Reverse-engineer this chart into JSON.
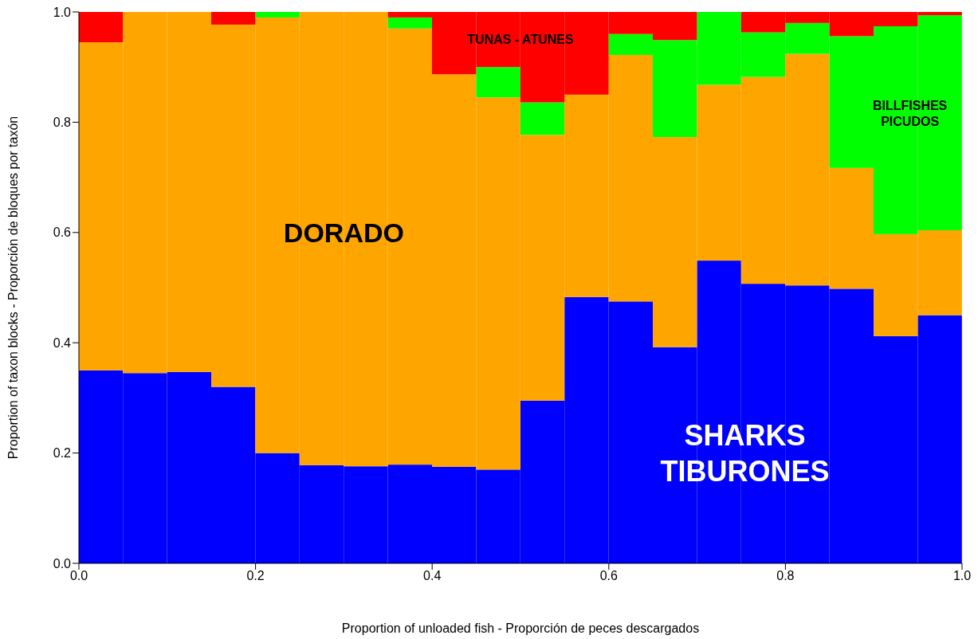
{
  "chart_data": {
    "type": "bar",
    "stacked": true,
    "xlabel": "Proportion of unloaded fish - Proporción de peces descargados",
    "ylabel": "Proportion of taxon blocks - Proporción de bloques por taxón",
    "x": [
      0.025,
      0.075,
      0.125,
      0.175,
      0.225,
      0.275,
      0.325,
      0.375,
      0.425,
      0.475,
      0.525,
      0.575,
      0.625,
      0.675,
      0.725,
      0.775,
      0.825,
      0.875,
      0.925,
      0.975
    ],
    "series": [
      {
        "name": "SHARKS\nTIBURONES",
        "color": "#0000ff",
        "values": [
          0.35,
          0.345,
          0.347,
          0.32,
          0.2,
          0.178,
          0.176,
          0.179,
          0.175,
          0.17,
          0.295,
          0.483,
          0.475,
          0.392,
          0.549,
          0.507,
          0.504,
          0.498,
          0.412,
          0.45
        ]
      },
      {
        "name": "DORADO",
        "color": "#ffa500",
        "values": [
          0.595,
          0.655,
          0.653,
          0.657,
          0.79,
          0.822,
          0.824,
          0.791,
          0.712,
          0.675,
          0.482,
          0.367,
          0.447,
          0.381,
          0.319,
          0.375,
          0.42,
          0.219,
          0.185,
          0.154
        ]
      },
      {
        "name": "BILLFISHES\nPICUDOS",
        "color": "#00ff00",
        "values": [
          0,
          0,
          0,
          0,
          0.01,
          0,
          0,
          0.02,
          0,
          0.055,
          0.059,
          0,
          0.038,
          0.176,
          0.132,
          0.081,
          0.056,
          0.239,
          0.377,
          0.39
        ]
      },
      {
        "name": "TUNAS - ATUNES",
        "color": "#ff0000",
        "values": [
          0.055,
          0,
          0,
          0.023,
          0,
          0,
          0,
          0.01,
          0.113,
          0.1,
          0.164,
          0.15,
          0.04,
          0.051,
          0,
          0.037,
          0.02,
          0.044,
          0.026,
          0.006
        ]
      }
    ],
    "xlim": [
      0,
      1
    ],
    "xticks": [
      {
        "value": 0,
        "label": "0.0"
      },
      {
        "value": 0.2,
        "label": "0.2"
      },
      {
        "value": 0.4,
        "label": "0.4"
      },
      {
        "value": 0.6,
        "label": "0.6"
      },
      {
        "value": 0.8,
        "label": "0.8"
      },
      {
        "value": 1,
        "label": "1.0"
      }
    ],
    "ylim": [
      0,
      1
    ],
    "yticks": [
      {
        "value": 0,
        "label": "0.0"
      },
      {
        "value": 0.2,
        "label": "0.2"
      },
      {
        "value": 0.4,
        "label": "0.4"
      },
      {
        "value": 0.6,
        "label": "0.6"
      },
      {
        "value": 0.8,
        "label": "0.8"
      },
      {
        "value": 1,
        "label": "1.0"
      }
    ],
    "grid": false,
    "legend": false
  }
}
